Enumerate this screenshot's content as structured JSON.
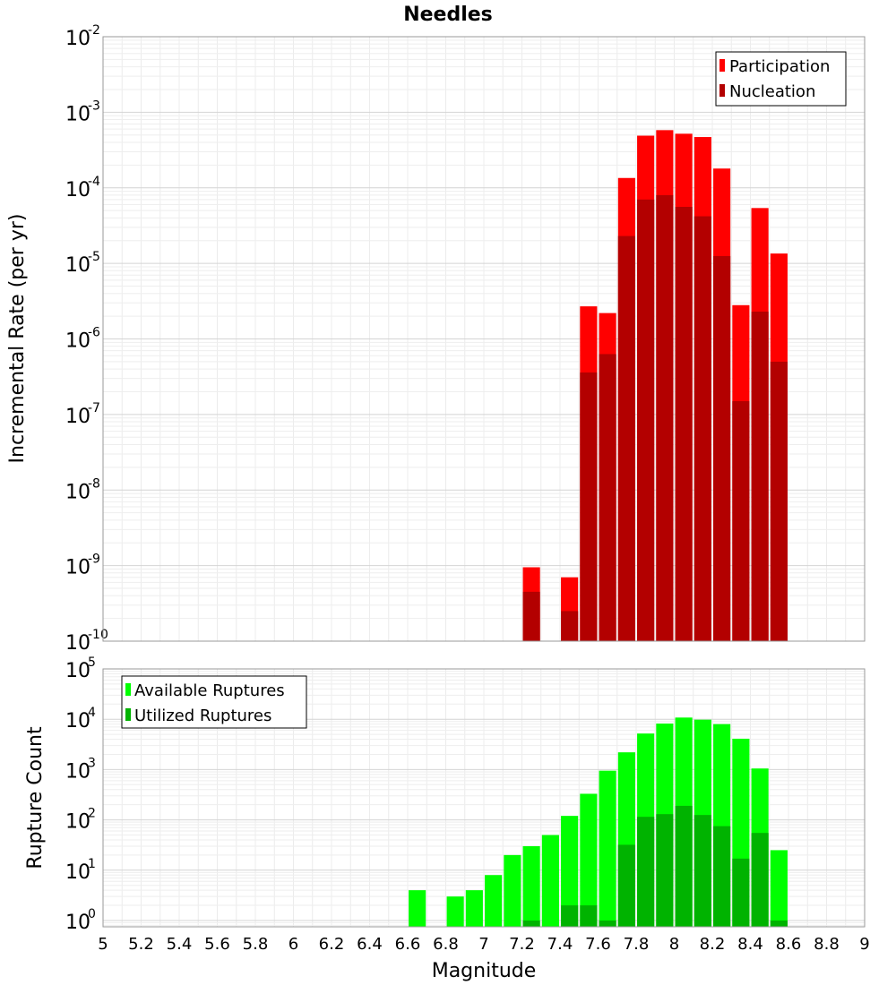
{
  "title": "Needles",
  "xlabel": "Magnitude",
  "x_ticks": [
    "5",
    "5.2",
    "5.4",
    "5.6",
    "5.8",
    "6",
    "6.2",
    "6.4",
    "6.6",
    "6.8",
    "7",
    "7.2",
    "7.4",
    "7.6",
    "7.8",
    "8",
    "8.2",
    "8.4",
    "8.6",
    "8.8",
    "9"
  ],
  "chart_data": [
    {
      "type": "bar",
      "title": "Needles",
      "xlabel": "Magnitude",
      "ylabel": "Incremental Rate (per yr)",
      "y_scale": "log",
      "xlim": [
        5,
        9
      ],
      "ylim": [
        1e-10,
        0.01
      ],
      "y_tick_exponents": [
        "-2",
        "-3",
        "-4",
        "-5",
        "-6",
        "-7",
        "-8",
        "-9",
        "-10"
      ],
      "grid": true,
      "legend_position": "top-right",
      "bar_width": 0.09,
      "x": [
        7.25,
        7.35,
        7.45,
        7.55,
        7.65,
        7.75,
        7.85,
        7.95,
        8.05,
        8.15,
        8.25,
        8.35,
        8.45,
        8.55
      ],
      "series": [
        {
          "name": "Participation",
          "color": "#ff0000",
          "values": [
            9.5e-10,
            null,
            7e-10,
            2.7e-06,
            2.2e-06,
            0.000135,
            0.00049,
            0.00058,
            0.00052,
            0.00047,
            0.00018,
            2.8e-06,
            5.4e-05,
            1.35e-05
          ]
        },
        {
          "name": "Nucleation",
          "color": "#b30000",
          "values": [
            4.5e-10,
            null,
            2.5e-10,
            3.6e-07,
            6.3e-07,
            2.3e-05,
            7e-05,
            8e-05,
            5.6e-05,
            4.2e-05,
            1.25e-05,
            1.5e-07,
            2.3e-06,
            5e-07
          ]
        }
      ]
    },
    {
      "type": "bar",
      "title": "",
      "xlabel": "Magnitude",
      "ylabel": "Rupture Count",
      "y_scale": "log",
      "xlim": [
        5,
        9
      ],
      "ylim": [
        0.75,
        100000.0
      ],
      "y_tick_exponents": [
        "5",
        "4",
        "3",
        "2",
        "1",
        "0"
      ],
      "grid": true,
      "legend_position": "top-left",
      "bar_width": 0.09,
      "x": [
        6.65,
        6.75,
        6.85,
        6.95,
        7.05,
        7.15,
        7.25,
        7.35,
        7.45,
        7.55,
        7.65,
        7.75,
        7.85,
        7.95,
        8.05,
        8.15,
        8.25,
        8.35,
        8.45,
        8.55
      ],
      "series": [
        {
          "name": "Available Ruptures",
          "color": "#00ff00",
          "values": [
            4,
            null,
            3,
            4,
            8,
            20,
            30,
            50,
            120,
            330,
            950,
            2200,
            5200,
            8200,
            10800,
            9800,
            8000,
            4100,
            1050,
            25
          ]
        },
        {
          "name": "Utilized Ruptures",
          "color": "#00b300",
          "values": [
            null,
            null,
            null,
            null,
            null,
            null,
            1,
            null,
            2,
            2,
            1,
            32,
            115,
            130,
            190,
            125,
            75,
            17,
            55,
            1
          ]
        }
      ]
    }
  ]
}
